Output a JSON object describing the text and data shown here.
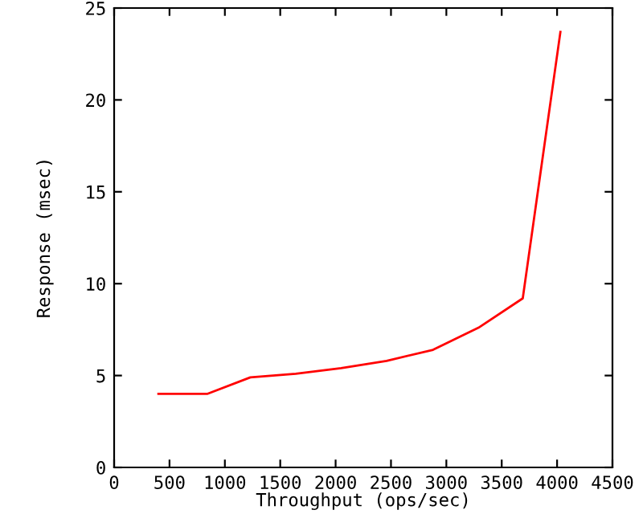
{
  "chart_data": {
    "type": "line",
    "xlabel": "Throughput (ops/sec)",
    "ylabel": "Response (msec)",
    "x": [
      400,
      840,
      1230,
      1640,
      2050,
      2460,
      2880,
      3290,
      3690,
      4030
    ],
    "series": [
      {
        "color": "#ff0000",
        "values": [
          4.0,
          4.0,
          4.9,
          5.1,
          5.4,
          5.8,
          6.4,
          7.6,
          9.2,
          23.7
        ]
      }
    ],
    "xlim": [
      0,
      4500
    ],
    "xticks": [
      0,
      500,
      1000,
      1500,
      2000,
      2500,
      3000,
      3500,
      4000,
      4500
    ],
    "ylim": [
      0,
      25
    ],
    "yticks": [
      0,
      5,
      10,
      15,
      20,
      25
    ],
    "grid": false,
    "legend": false
  }
}
